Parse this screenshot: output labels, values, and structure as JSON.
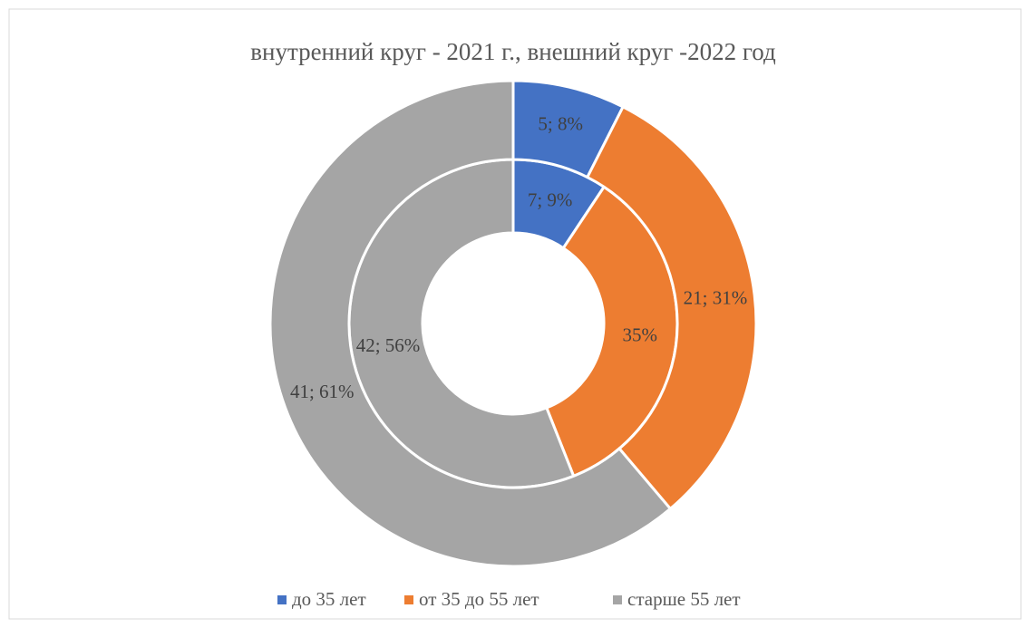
{
  "chart_data": {
    "type": "donut",
    "title": "внутренний круг - 2021 г., внешний круг -2022 год",
    "categories": [
      "до 35 лет",
      "от 35 до 55 лет",
      "старше 55 лет"
    ],
    "colors": [
      "#4472c4",
      "#ed7d31",
      "#a5a5a5"
    ],
    "legend": "bottom",
    "series": [
      {
        "name": "2021",
        "ring": "inner",
        "values": [
          7,
          26,
          42
        ],
        "percents": [
          9,
          35,
          56
        ],
        "value_labels": [
          "7; 9%",
          "35%",
          "42; 56%"
        ]
      },
      {
        "name": "2022",
        "ring": "outer",
        "values": [
          5,
          21,
          41
        ],
        "percents": [
          8,
          31,
          61
        ],
        "value_labels": [
          "5; 8%",
          "21; 31%",
          "41; 61%"
        ]
      }
    ]
  }
}
